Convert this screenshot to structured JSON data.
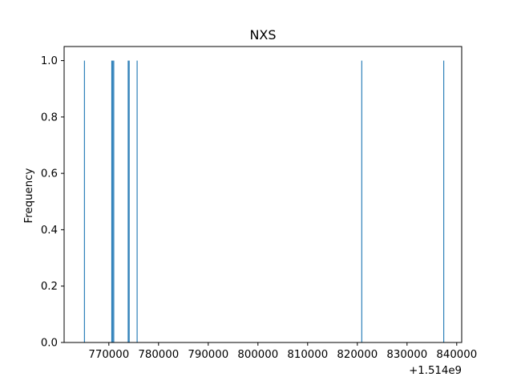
{
  "chart_data": {
    "type": "bar",
    "title": "NXS",
    "xlabel": "",
    "ylabel": "Frequency",
    "x_offset_label": "+1.514e9",
    "x_offset": 1514000000,
    "bin_edges": [
      1514765000,
      1514770500,
      1514770700,
      1514770900,
      1514771000,
      1514773800,
      1514774000,
      1514775600,
      1514820800,
      1514837500
    ],
    "bins": [
      {
        "left": 1514765000,
        "right": 1514765180,
        "value": 1
      },
      {
        "left": 1514770500,
        "right": 1514770680,
        "value": 1
      },
      {
        "left": 1514770700,
        "right": 1514770880,
        "value": 1
      },
      {
        "left": 1514770900,
        "right": 1514771080,
        "value": 1
      },
      {
        "left": 1514773800,
        "right": 1514773980,
        "value": 1
      },
      {
        "left": 1514774000,
        "right": 1514774180,
        "value": 1
      },
      {
        "left": 1514775600,
        "right": 1514775780,
        "value": 1
      },
      {
        "left": 1514820800,
        "right": 1514820980,
        "value": 1
      },
      {
        "left": 1514837300,
        "right": 1514837480,
        "value": 1
      }
    ],
    "xlim": [
      1514761000,
      1514841000
    ],
    "ylim": [
      0,
      1.05
    ],
    "x_ticks": [
      1514770000,
      1514780000,
      1514790000,
      1514800000,
      1514810000,
      1514820000,
      1514830000,
      1514840000
    ],
    "x_tick_labels": [
      "770000",
      "780000",
      "790000",
      "800000",
      "810000",
      "820000",
      "830000",
      "840000"
    ],
    "y_ticks": [
      0.0,
      0.2,
      0.4,
      0.6,
      0.8,
      1.0
    ],
    "y_tick_labels": [
      "0.0",
      "0.2",
      "0.4",
      "0.6",
      "0.8",
      "1.0"
    ],
    "grid": false,
    "colors": {
      "bar": "#1f77b4",
      "axis": "#000000",
      "background": "#ffffff"
    }
  }
}
